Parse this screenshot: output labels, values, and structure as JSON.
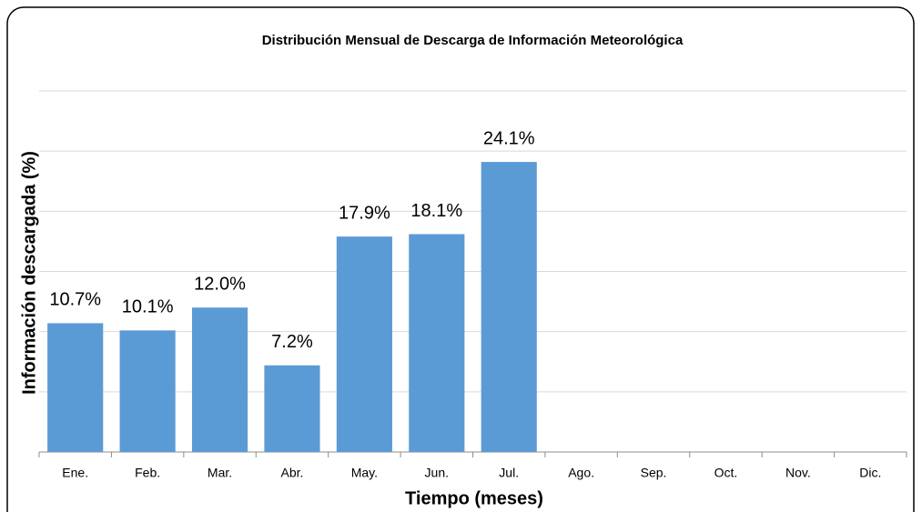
{
  "chart_data": {
    "type": "bar",
    "title": "Distribución Mensual de Descarga de Información Meteorológica",
    "x_label": "Tiempo (meses)",
    "y_label": "Información descargada (%)",
    "categories": [
      "Ene.",
      "Feb.",
      "Mar.",
      "Abr.",
      "May.",
      "Jun.",
      "Jul.",
      "Ago.",
      "Sep.",
      "Oct.",
      "Nov.",
      "Dic."
    ],
    "values": [
      10.7,
      10.1,
      12.0,
      7.2,
      17.9,
      18.1,
      24.1,
      null,
      null,
      null,
      null,
      null
    ],
    "value_labels": [
      "10.7%",
      "10.1%",
      "12.0%",
      "7.2%",
      "17.9%",
      "18.1%",
      "24.1%",
      null,
      null,
      null,
      null,
      null
    ],
    "color": "#5b9bd5",
    "ylim": [
      0,
      30
    ],
    "yticks": [
      0,
      5,
      10,
      15,
      20,
      25,
      30
    ],
    "grid": true
  }
}
